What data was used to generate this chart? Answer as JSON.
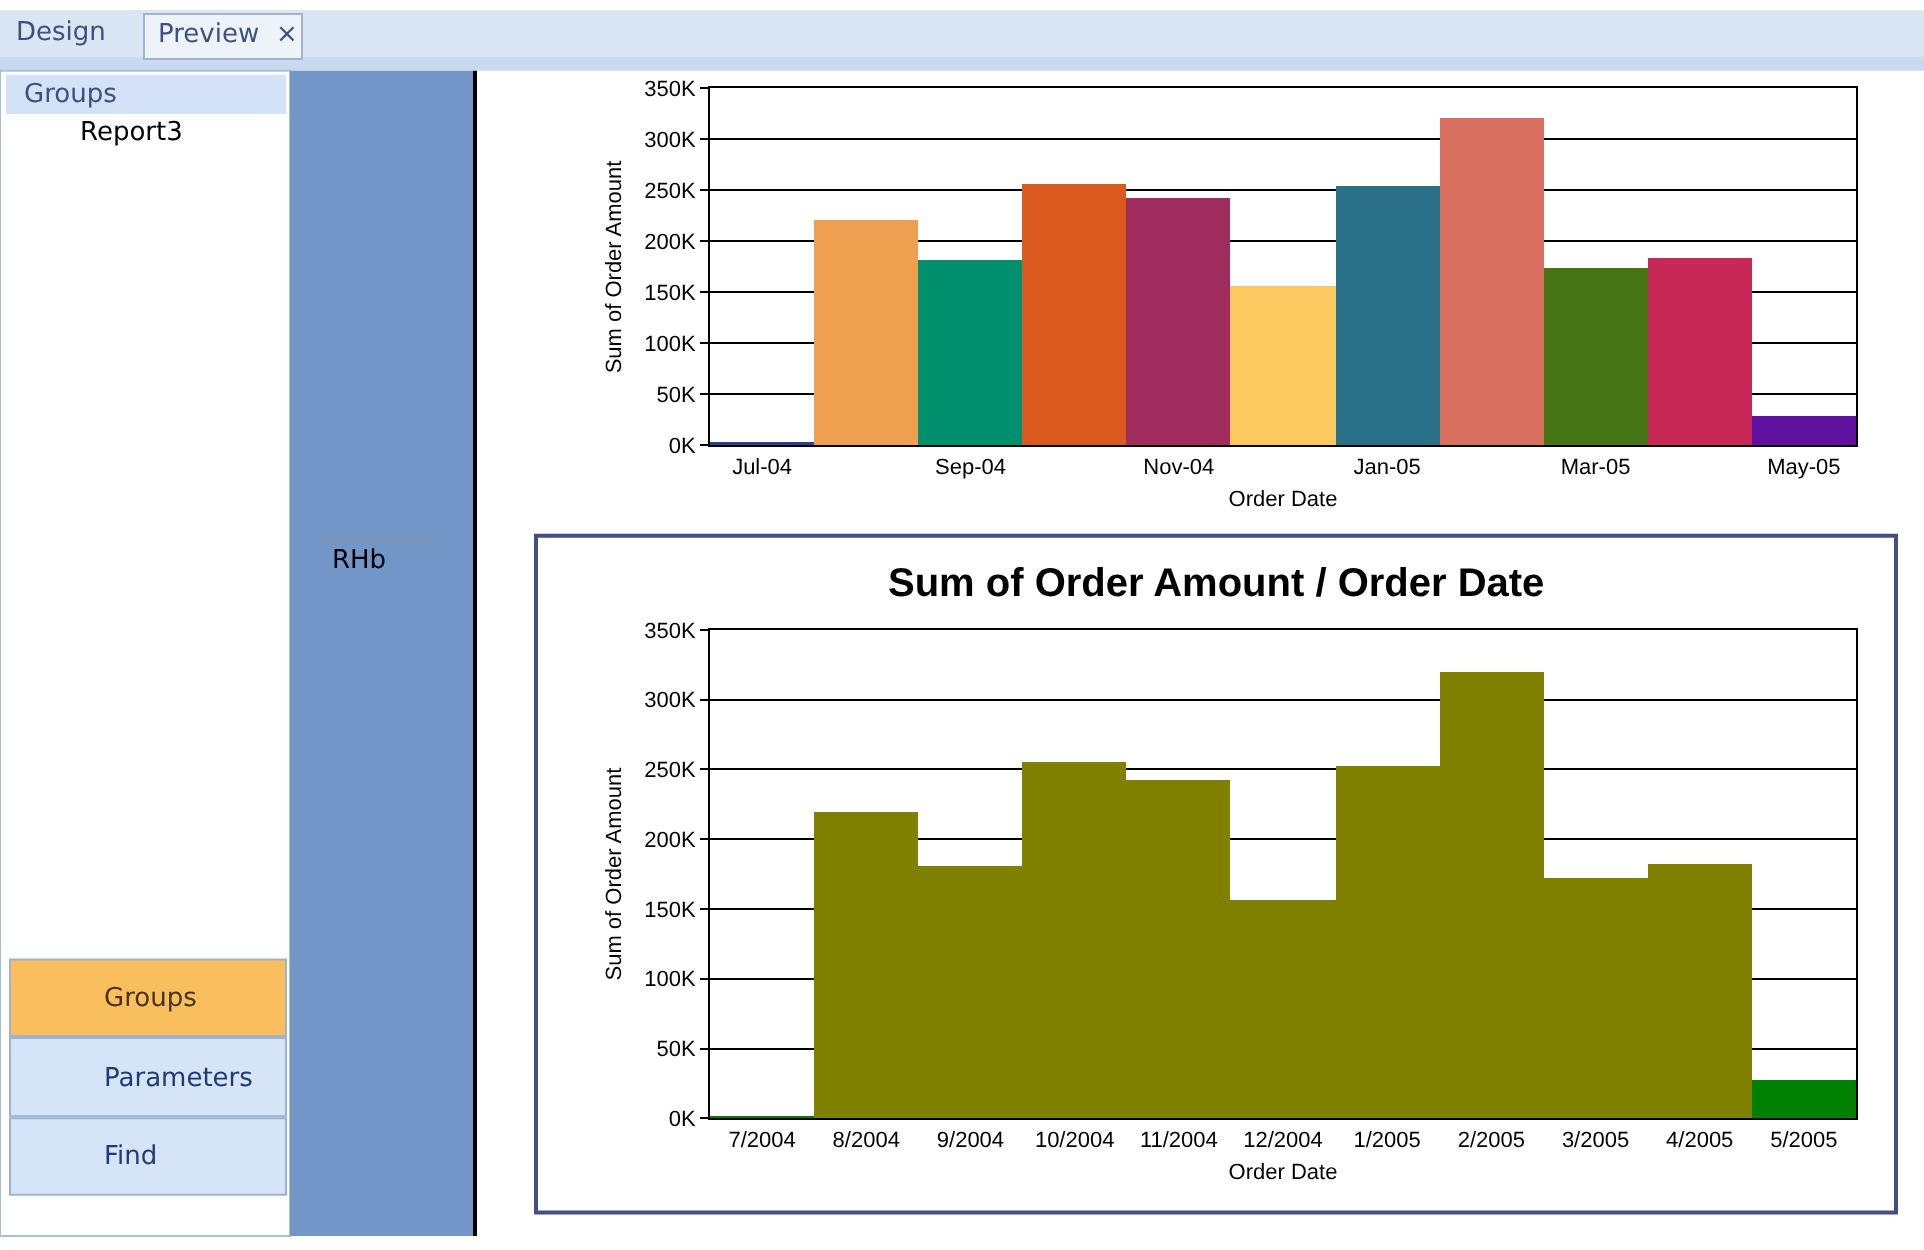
{
  "chart_data": [
    {
      "type": "bar",
      "categories": [
        "Jul-04",
        null,
        "Sep-04",
        null,
        "Nov-04",
        null,
        "Jan-05",
        null,
        "Mar-05",
        null,
        "May-05"
      ],
      "values": [
        2000,
        220000,
        181000,
        255000,
        242000,
        156000,
        253000,
        320000,
        173000,
        183000,
        28000
      ],
      "colors": [
        "#2f3f8f",
        "#eea050",
        "#00906e",
        "#da5a20",
        "#a02c5e",
        "#fcc860",
        "#2a7088",
        "#da7060",
        "#457515",
        "#c82858",
        "#60109e"
      ],
      "xlabel": "Order Date",
      "ylabel": "Sum of Order Amount",
      "ylim": [
        0,
        350000
      ],
      "yticks": [
        {
          "value": 0,
          "label": "0K"
        },
        {
          "value": 50000,
          "label": "50K"
        },
        {
          "value": 100000,
          "label": "100K"
        },
        {
          "value": 150000,
          "label": "150K"
        },
        {
          "value": 200000,
          "label": "200K"
        },
        {
          "value": 250000,
          "label": "250K"
        },
        {
          "value": 300000,
          "label": "300K"
        },
        {
          "value": 350000,
          "label": "350K"
        }
      ],
      "grid": "y"
    },
    {
      "type": "bar",
      "title": "Sum of Order Amount / Order Date",
      "categories": [
        "7/2004",
        "8/2004",
        "9/2004",
        "10/2004",
        "11/2004",
        "12/2004",
        "1/2005",
        "2/2005",
        "3/2005",
        "4/2005",
        "5/2005"
      ],
      "values": [
        2000,
        220000,
        181000,
        255000,
        242000,
        156000,
        253000,
        320000,
        173000,
        183000,
        28000
      ],
      "colors": [
        "#008000",
        "#808000",
        "#808000",
        "#808000",
        "#808000",
        "#808000",
        "#808000",
        "#808000",
        "#808000",
        "#808000",
        "#008000"
      ],
      "xlabel": "Order Date",
      "ylabel": "Sum of Order Amount",
      "ylim": [
        0,
        350000
      ],
      "yticks": [
        {
          "value": 0,
          "label": "0K"
        },
        {
          "value": 50000,
          "label": "50K"
        },
        {
          "value": 100000,
          "label": "100K"
        },
        {
          "value": 150000,
          "label": "150K"
        },
        {
          "value": 200000,
          "label": "200K"
        },
        {
          "value": 250000,
          "label": "250K"
        },
        {
          "value": 300000,
          "label": "300K"
        },
        {
          "value": 350000,
          "label": "350K"
        }
      ],
      "grid": "y"
    },
    {
      "type": "other",
      "annotations": [
        "Design",
        "Preview",
        "×",
        "Groups",
        "Report3",
        "RHb",
        "Groups",
        "Parameters",
        "Find"
      ]
    }
  ]
}
